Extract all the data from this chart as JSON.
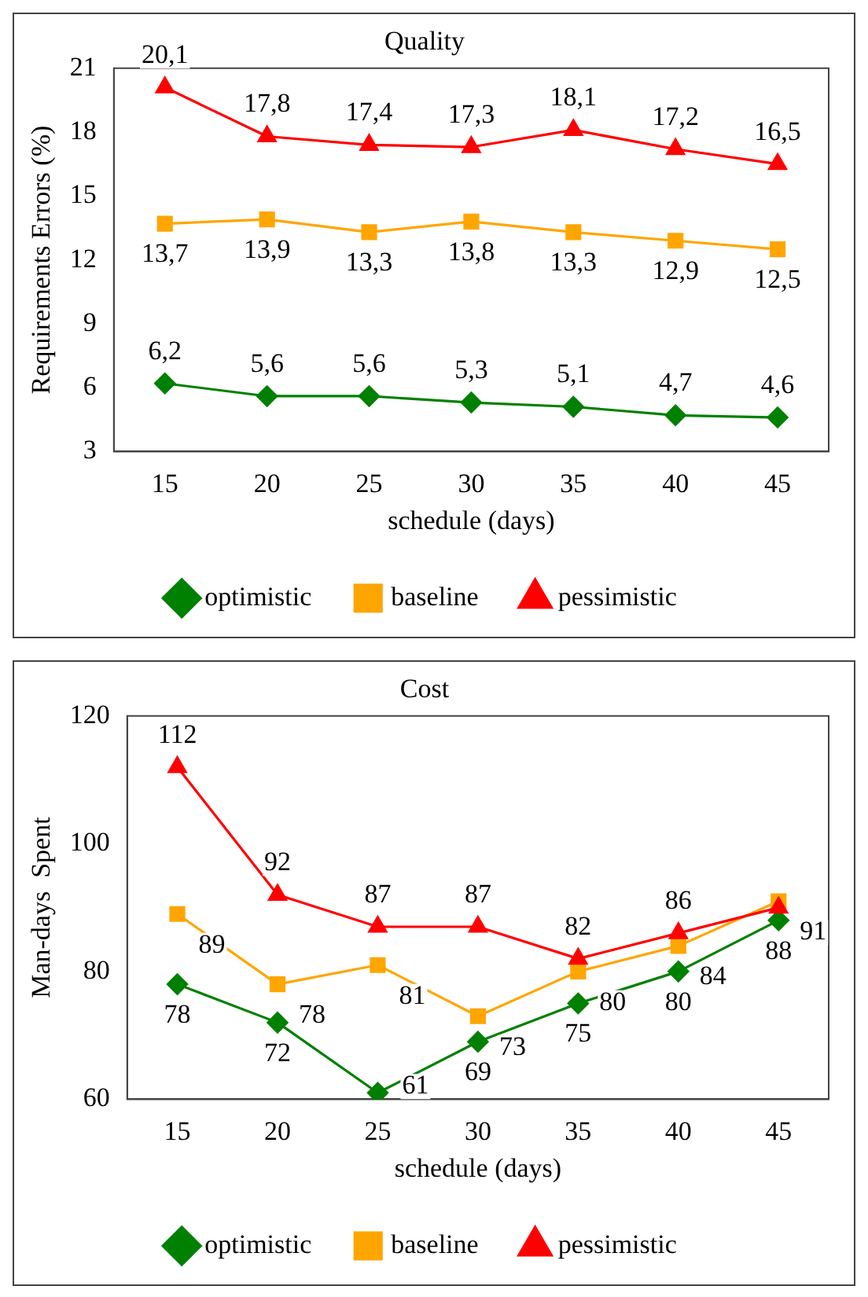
{
  "chart_data": [
    {
      "type": "line",
      "title": "Quality",
      "xlabel": "schedule (days)",
      "ylabel": "Requirements Errors (%)",
      "categories": [
        "15",
        "20",
        "25",
        "30",
        "35",
        "40",
        "45"
      ],
      "ylim": [
        3,
        21
      ],
      "yticks": [
        3,
        6,
        9,
        12,
        15,
        18,
        21
      ],
      "grid": false,
      "legend": "bottom",
      "series": [
        {
          "name": "optimistic",
          "color": "#008000",
          "marker": "diamond",
          "values": [
            6.2,
            5.6,
            5.6,
            5.3,
            5.1,
            4.7,
            4.6
          ],
          "value_labels": [
            "6,2",
            "5,6",
            "5,6",
            "5,3",
            "5,1",
            "4,7",
            "4,6"
          ]
        },
        {
          "name": "baseline",
          "color": "#ffa500",
          "marker": "square",
          "values": [
            13.7,
            13.9,
            13.3,
            13.8,
            13.3,
            12.9,
            12.5
          ],
          "value_labels": [
            "13,7",
            "13,9",
            "13,3",
            "13,8",
            "13,3",
            "12,9",
            "12,5"
          ]
        },
        {
          "name": "pessimistic",
          "color": "#ff0000",
          "marker": "triangle",
          "values": [
            20.1,
            17.8,
            17.4,
            17.3,
            18.1,
            17.2,
            16.5
          ],
          "value_labels": [
            "20,1",
            "17,8",
            "17,4",
            "17,3",
            "18,1",
            "17,2",
            "16,5"
          ]
        }
      ]
    },
    {
      "type": "line",
      "title": "Cost",
      "xlabel": "schedule (days)",
      "ylabel": "Man-days  Spent",
      "categories": [
        "15",
        "20",
        "25",
        "30",
        "35",
        "40",
        "45"
      ],
      "ylim": [
        60,
        120
      ],
      "yticks": [
        60,
        80,
        100,
        120
      ],
      "grid": false,
      "legend": "bottom",
      "series": [
        {
          "name": "optimistic",
          "color": "#008000",
          "marker": "diamond",
          "values": [
            78,
            72,
            61,
            69,
            75,
            80,
            88
          ],
          "value_labels": [
            "78",
            "72",
            "61",
            "69",
            "75",
            "80",
            "88"
          ]
        },
        {
          "name": "baseline",
          "color": "#ffa500",
          "marker": "square",
          "values": [
            89,
            78,
            81,
            73,
            80,
            84,
            91
          ],
          "value_labels": [
            "89",
            "78",
            "81",
            "73",
            "80",
            "84",
            "91"
          ]
        },
        {
          "name": "pessimistic",
          "color": "#ff0000",
          "marker": "triangle",
          "values": [
            112,
            92,
            87,
            87,
            82,
            86,
            90
          ],
          "value_labels": [
            "112",
            "92",
            "87",
            "87",
            "82",
            "86",
            null
          ]
        }
      ]
    }
  ]
}
